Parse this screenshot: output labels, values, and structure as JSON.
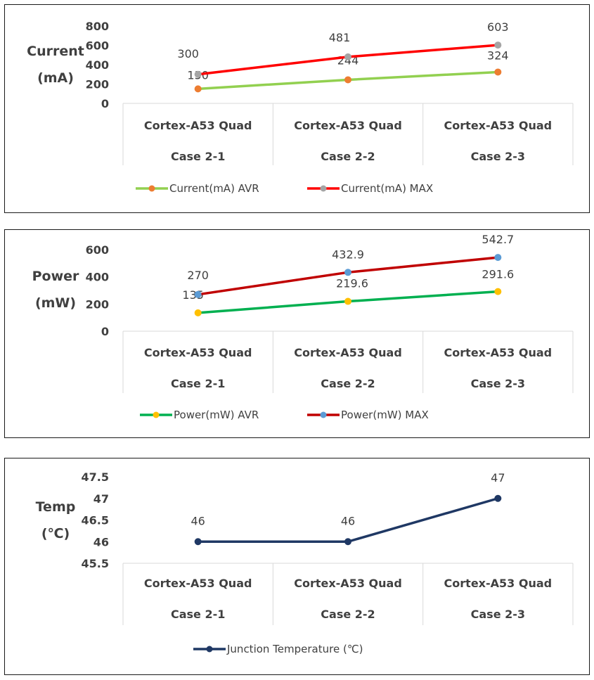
{
  "chart_data": [
    {
      "type": "line",
      "ylabel": [
        "Current",
        "(mA)"
      ],
      "categories": [
        [
          "Cortex-A53 Quad",
          "Case 2-1"
        ],
        [
          "Cortex-A53 Quad",
          "Case 2-2"
        ],
        [
          "Cortex-A53 Quad",
          "Case 2-3"
        ]
      ],
      "ylim": [
        0,
        800
      ],
      "yticks": [
        "0",
        "200",
        "400",
        "600",
        "800"
      ],
      "ytick_values": [
        0,
        200,
        400,
        600,
        800
      ],
      "legend": "bottom",
      "series": [
        {
          "name": "Current(mA) AVR",
          "values": [
            150,
            244,
            324
          ],
          "labels": [
            "150",
            "244",
            "324"
          ],
          "color": "#92d050",
          "marker": "#ed7d31"
        },
        {
          "name": "Current(mA) MAX",
          "values": [
            300,
            481,
            603
          ],
          "labels": [
            "300",
            "481",
            "603"
          ],
          "color": "#ff0000",
          "marker": "#a5a5a5"
        }
      ]
    },
    {
      "type": "line",
      "ylabel": [
        "Power",
        "(mW)"
      ],
      "categories": [
        [
          "Cortex-A53 Quad",
          "Case 2-1"
        ],
        [
          "Cortex-A53 Quad",
          "Case 2-2"
        ],
        [
          "Cortex-A53 Quad",
          "Case 2-3"
        ]
      ],
      "ylim": [
        0,
        600
      ],
      "yticks": [
        "0",
        "200",
        "400",
        "600"
      ],
      "ytick_values": [
        0,
        200,
        400,
        600
      ],
      "legend": "bottom",
      "series": [
        {
          "name": "Power(mW) AVR",
          "values": [
            135,
            219.6,
            291.6
          ],
          "labels": [
            "135",
            "219.6",
            "291.6"
          ],
          "color": "#00b050",
          "marker": "#ffc000"
        },
        {
          "name": "Power(mW) MAX",
          "values": [
            270,
            432.9,
            542.7
          ],
          "labels": [
            "270",
            "432.9",
            "542.7"
          ],
          "color": "#c00000",
          "marker": "#5b9bd5"
        }
      ]
    },
    {
      "type": "line",
      "ylabel": [
        "Temp",
        "(℃)"
      ],
      "categories": [
        [
          "Cortex-A53 Quad",
          "Case 2-1"
        ],
        [
          "Cortex-A53 Quad",
          "Case 2-2"
        ],
        [
          "Cortex-A53 Quad",
          "Case 2-3"
        ]
      ],
      "ylim": [
        45.5,
        47.5
      ],
      "yticks": [
        "45.5",
        "46",
        "46.5",
        "47",
        "47.5"
      ],
      "ytick_values": [
        45.5,
        46,
        46.5,
        47,
        47.5
      ],
      "legend": "bottom",
      "series": [
        {
          "name": "Junction Temperature (℃)",
          "values": [
            46,
            46,
            47
          ],
          "labels": [
            "46",
            "46",
            "47"
          ],
          "color": "#1f3864",
          "marker": "#1f3864"
        }
      ]
    }
  ]
}
